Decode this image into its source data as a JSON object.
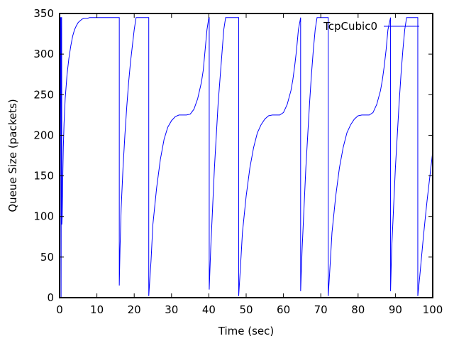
{
  "chart_data": {
    "type": "line",
    "title": "",
    "xlabel": "Time (sec)",
    "ylabel": "Queue Size (packets)",
    "xlim": [
      0,
      100
    ],
    "ylim": [
      0,
      350
    ],
    "x_ticks": [
      0,
      10,
      20,
      30,
      40,
      50,
      60,
      70,
      80,
      90,
      100
    ],
    "y_ticks": [
      0,
      50,
      100,
      150,
      200,
      250,
      300,
      350
    ],
    "grid": false,
    "legend_position": "top-right",
    "series": [
      {
        "name": "TcpCubic0",
        "color": "#0000ff",
        "x": [
          0.0,
          0.2,
          0.3,
          0.4,
          0.5,
          0.55,
          0.6,
          0.7,
          0.8,
          0.9,
          1.0,
          1.2,
          1.5,
          2.0,
          2.5,
          3.0,
          3.5,
          4.0,
          4.5,
          5.0,
          5.5,
          6.0,
          6.5,
          7.0,
          7.5,
          8.0,
          9.0,
          10.0,
          11.0,
          12.0,
          13.0,
          14.0,
          15.0,
          16.0,
          16.0,
          16.2,
          16.5,
          17.0,
          17.5,
          18.0,
          18.5,
          19.0,
          19.5,
          20.0,
          20.5,
          21.0,
          22.0,
          23.0,
          23.9,
          23.9,
          24.5,
          25.0,
          26.0,
          27.0,
          28.0,
          29.0,
          30.0,
          31.0,
          32.0,
          33.0,
          34.0,
          35.0,
          36.0,
          37.0,
          38.0,
          38.5,
          39.0,
          39.5,
          40.0,
          40.1,
          40.1,
          40.5,
          41.0,
          41.5,
          42.0,
          42.5,
          43.0,
          43.5,
          44.0,
          44.5,
          45.0,
          46.0,
          47.0,
          48.0,
          48.0,
          48.5,
          49.0,
          50.0,
          51.0,
          52.0,
          53.0,
          54.0,
          55.0,
          56.0,
          57.0,
          58.0,
          59.0,
          60.0,
          61.0,
          62.0,
          62.5,
          63.0,
          63.5,
          64.0,
          64.6,
          64.6,
          65.0,
          65.5,
          66.0,
          66.5,
          67.0,
          67.5,
          68.0,
          68.5,
          69.0,
          70.0,
          71.0,
          72.0,
          72.0,
          72.5,
          73.0,
          74.0,
          75.0,
          76.0,
          77.0,
          78.0,
          79.0,
          80.0,
          81.0,
          82.0,
          83.0,
          84.0,
          85.0,
          86.0,
          86.5,
          87.0,
          87.5,
          88.0,
          88.7,
          88.7,
          89.0,
          89.5,
          90.0,
          90.5,
          91.0,
          91.5,
          92.0,
          92.5,
          93.0,
          94.0,
          95.0,
          96.0,
          96.0,
          96.5,
          97.0,
          97.5,
          98.0,
          98.5,
          99.0,
          99.5,
          100.0
        ],
        "y": [
          0,
          345,
          345,
          0,
          345,
          345,
          90,
          100,
          130,
          160,
          185,
          215,
          245,
          275,
          295,
          310,
          322,
          330,
          335,
          339,
          341,
          343,
          344,
          344,
          344,
          345,
          345,
          345,
          345,
          345,
          345,
          345,
          345,
          345,
          15,
          60,
          110,
          160,
          200,
          235,
          265,
          290,
          310,
          330,
          345,
          345,
          345,
          345,
          345,
          2,
          45,
          90,
          135,
          170,
          195,
          210,
          218,
          223,
          225,
          225,
          225,
          226,
          232,
          245,
          265,
          280,
          305,
          330,
          345,
          345,
          10,
          60,
          110,
          160,
          200,
          240,
          270,
          300,
          330,
          345,
          345,
          345,
          345,
          345,
          2,
          40,
          80,
          125,
          160,
          185,
          203,
          213,
          220,
          224,
          225,
          225,
          225,
          228,
          238,
          255,
          268,
          285,
          305,
          330,
          345,
          8,
          60,
          110,
          160,
          200,
          240,
          275,
          305,
          330,
          345,
          345,
          345,
          345,
          2,
          40,
          80,
          125,
          160,
          185,
          203,
          213,
          220,
          224,
          225,
          225,
          225,
          228,
          238,
          255,
          268,
          285,
          305,
          330,
          345,
          8,
          60,
          110,
          160,
          200,
          240,
          275,
          305,
          330,
          345,
          345,
          345,
          345,
          2,
          25,
          50,
          75,
          98,
          120,
          140,
          160,
          180
        ]
      }
    ],
    "legend": [
      {
        "label": "TcpCubic0",
        "color": "#0000ff"
      }
    ]
  }
}
